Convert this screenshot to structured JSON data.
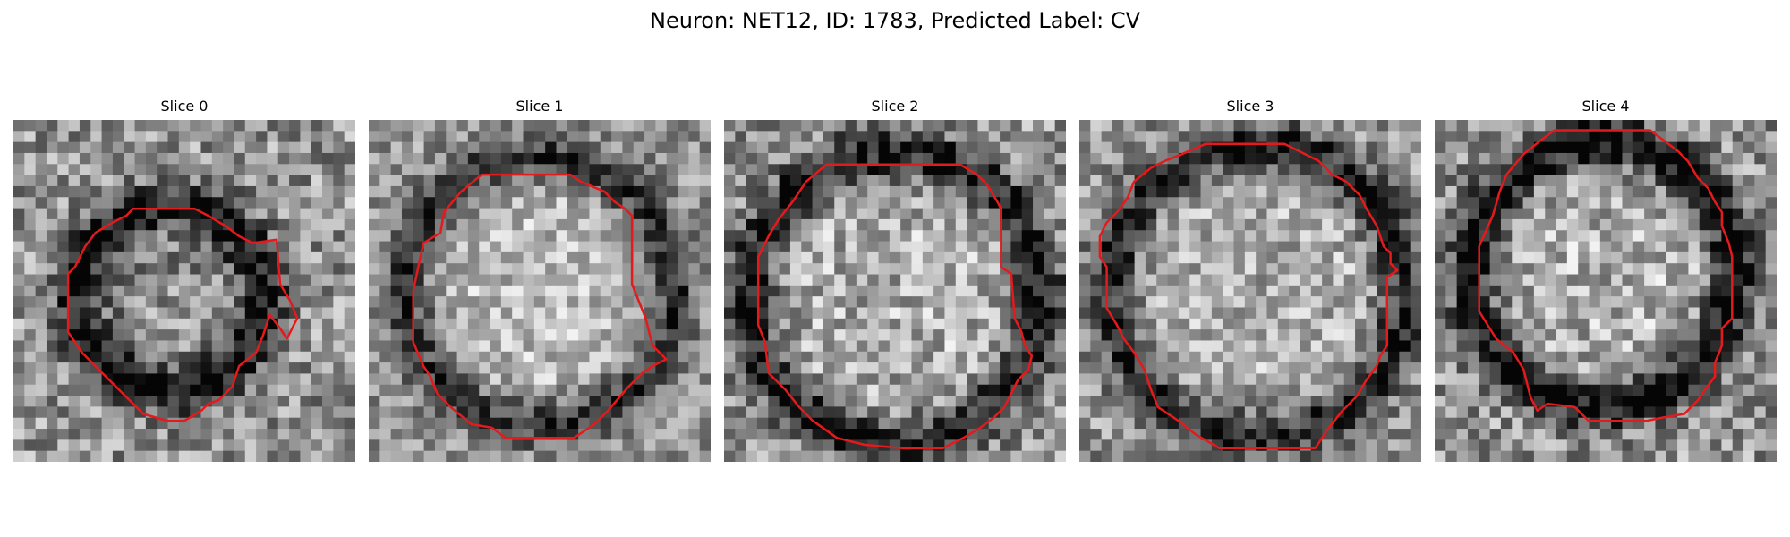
{
  "figure": {
    "title": "Neuron: NET12, ID: 1783, Predicted Label: CV",
    "contour_color": "#e41a1c"
  },
  "panels": [
    {
      "label": "Slice 0",
      "seed": 11,
      "center": [
        0.46,
        0.52
      ],
      "radius": 0.27,
      "ring_dark": 0.55,
      "inner": 0.45,
      "noise": 0.55,
      "contour": [
        [
          0.35,
          0.26
        ],
        [
          0.53,
          0.26
        ],
        [
          0.57,
          0.28
        ],
        [
          0.62,
          0.31
        ],
        [
          0.66,
          0.34
        ],
        [
          0.7,
          0.36
        ],
        [
          0.77,
          0.35
        ],
        [
          0.78,
          0.48
        ],
        [
          0.81,
          0.53
        ],
        [
          0.83,
          0.58
        ],
        [
          0.8,
          0.64
        ],
        [
          0.78,
          0.61
        ],
        [
          0.75,
          0.57
        ],
        [
          0.74,
          0.6
        ],
        [
          0.73,
          0.63
        ],
        [
          0.71,
          0.68
        ],
        [
          0.66,
          0.72
        ],
        [
          0.64,
          0.78
        ],
        [
          0.6,
          0.82
        ],
        [
          0.57,
          0.83
        ],
        [
          0.55,
          0.85
        ],
        [
          0.5,
          0.88
        ],
        [
          0.45,
          0.88
        ],
        [
          0.38,
          0.86
        ],
        [
          0.32,
          0.8
        ],
        [
          0.26,
          0.74
        ],
        [
          0.2,
          0.68
        ],
        [
          0.16,
          0.62
        ],
        [
          0.16,
          0.45
        ],
        [
          0.18,
          0.43
        ],
        [
          0.21,
          0.37
        ],
        [
          0.24,
          0.33
        ],
        [
          0.29,
          0.3
        ],
        [
          0.33,
          0.28
        ]
      ]
    },
    {
      "label": "Slice 1",
      "seed": 23,
      "center": [
        0.5,
        0.5
      ],
      "radius": 0.38,
      "ring_dark": 0.45,
      "inner": 0.8,
      "noise": 0.45,
      "contour": [
        [
          0.33,
          0.16
        ],
        [
          0.59,
          0.16
        ],
        [
          0.62,
          0.18
        ],
        [
          0.69,
          0.21
        ],
        [
          0.72,
          0.24
        ],
        [
          0.75,
          0.26
        ],
        [
          0.77,
          0.28
        ],
        [
          0.77,
          0.48
        ],
        [
          0.81,
          0.58
        ],
        [
          0.83,
          0.66
        ],
        [
          0.87,
          0.7
        ],
        [
          0.83,
          0.72
        ],
        [
          0.8,
          0.74
        ],
        [
          0.76,
          0.78
        ],
        [
          0.7,
          0.85
        ],
        [
          0.66,
          0.89
        ],
        [
          0.6,
          0.93
        ],
        [
          0.4,
          0.93
        ],
        [
          0.36,
          0.9
        ],
        [
          0.3,
          0.89
        ],
        [
          0.24,
          0.84
        ],
        [
          0.2,
          0.8
        ],
        [
          0.18,
          0.75
        ],
        [
          0.16,
          0.72
        ],
        [
          0.13,
          0.65
        ],
        [
          0.13,
          0.5
        ],
        [
          0.16,
          0.36
        ],
        [
          0.21,
          0.33
        ],
        [
          0.22,
          0.27
        ],
        [
          0.27,
          0.21
        ]
      ]
    },
    {
      "label": "Slice 2",
      "seed": 37,
      "center": [
        0.5,
        0.52
      ],
      "radius": 0.42,
      "ring_dark": 0.55,
      "inner": 0.7,
      "noise": 0.55,
      "contour": [
        [
          0.3,
          0.13
        ],
        [
          0.69,
          0.13
        ],
        [
          0.74,
          0.16
        ],
        [
          0.77,
          0.19
        ],
        [
          0.8,
          0.24
        ],
        [
          0.81,
          0.26
        ],
        [
          0.81,
          0.43
        ],
        [
          0.84,
          0.45
        ],
        [
          0.85,
          0.58
        ],
        [
          0.87,
          0.62
        ],
        [
          0.88,
          0.66
        ],
        [
          0.9,
          0.69
        ],
        [
          0.89,
          0.73
        ],
        [
          0.86,
          0.76
        ],
        [
          0.84,
          0.8
        ],
        [
          0.82,
          0.84
        ],
        [
          0.79,
          0.87
        ],
        [
          0.75,
          0.9
        ],
        [
          0.7,
          0.93
        ],
        [
          0.64,
          0.96
        ],
        [
          0.52,
          0.96
        ],
        [
          0.41,
          0.95
        ],
        [
          0.33,
          0.93
        ],
        [
          0.26,
          0.88
        ],
        [
          0.22,
          0.84
        ],
        [
          0.18,
          0.79
        ],
        [
          0.13,
          0.74
        ],
        [
          0.12,
          0.65
        ],
        [
          0.1,
          0.6
        ],
        [
          0.1,
          0.4
        ],
        [
          0.13,
          0.34
        ],
        [
          0.16,
          0.29
        ],
        [
          0.2,
          0.24
        ],
        [
          0.24,
          0.18
        ]
      ]
    },
    {
      "label": "Slice 3",
      "seed": 41,
      "center": [
        0.52,
        0.5
      ],
      "radius": 0.42,
      "ring_dark": 0.5,
      "inner": 0.7,
      "noise": 0.5,
      "contour": [
        [
          0.37,
          0.07
        ],
        [
          0.6,
          0.07
        ],
        [
          0.64,
          0.09
        ],
        [
          0.7,
          0.12
        ],
        [
          0.74,
          0.16
        ],
        [
          0.78,
          0.18
        ],
        [
          0.82,
          0.22
        ],
        [
          0.84,
          0.26
        ],
        [
          0.87,
          0.31
        ],
        [
          0.89,
          0.37
        ],
        [
          0.91,
          0.39
        ],
        [
          0.91,
          0.42
        ],
        [
          0.93,
          0.44
        ],
        [
          0.9,
          0.46
        ],
        [
          0.9,
          0.66
        ],
        [
          0.88,
          0.69
        ],
        [
          0.87,
          0.72
        ],
        [
          0.84,
          0.76
        ],
        [
          0.81,
          0.81
        ],
        [
          0.77,
          0.85
        ],
        [
          0.73,
          0.9
        ],
        [
          0.69,
          0.96
        ],
        [
          0.41,
          0.96
        ],
        [
          0.34,
          0.92
        ],
        [
          0.29,
          0.88
        ],
        [
          0.23,
          0.84
        ],
        [
          0.21,
          0.79
        ],
        [
          0.19,
          0.73
        ],
        [
          0.16,
          0.68
        ],
        [
          0.13,
          0.64
        ],
        [
          0.11,
          0.6
        ],
        [
          0.08,
          0.55
        ],
        [
          0.08,
          0.43
        ],
        [
          0.06,
          0.4
        ],
        [
          0.06,
          0.34
        ],
        [
          0.08,
          0.3
        ],
        [
          0.11,
          0.27
        ],
        [
          0.14,
          0.23
        ],
        [
          0.16,
          0.18
        ],
        [
          0.21,
          0.14
        ],
        [
          0.25,
          0.12
        ],
        [
          0.3,
          0.1
        ]
      ]
    },
    {
      "label": "Slice 4",
      "seed": 59,
      "center": [
        0.49,
        0.45
      ],
      "radius": 0.38,
      "ring_dark": 0.6,
      "inner": 0.72,
      "noise": 0.55,
      "contour": [
        [
          0.35,
          0.03
        ],
        [
          0.63,
          0.03
        ],
        [
          0.67,
          0.06
        ],
        [
          0.71,
          0.09
        ],
        [
          0.74,
          0.12
        ],
        [
          0.77,
          0.17
        ],
        [
          0.8,
          0.2
        ],
        [
          0.82,
          0.24
        ],
        [
          0.84,
          0.27
        ],
        [
          0.84,
          0.31
        ],
        [
          0.86,
          0.36
        ],
        [
          0.87,
          0.4
        ],
        [
          0.87,
          0.58
        ],
        [
          0.84,
          0.61
        ],
        [
          0.84,
          0.66
        ],
        [
          0.82,
          0.71
        ],
        [
          0.82,
          0.75
        ],
        [
          0.79,
          0.79
        ],
        [
          0.77,
          0.82
        ],
        [
          0.75,
          0.84
        ],
        [
          0.73,
          0.86
        ],
        [
          0.67,
          0.87
        ],
        [
          0.62,
          0.88
        ],
        [
          0.45,
          0.88
        ],
        [
          0.41,
          0.84
        ],
        [
          0.33,
          0.83
        ],
        [
          0.3,
          0.85
        ],
        [
          0.28,
          0.81
        ],
        [
          0.26,
          0.73
        ],
        [
          0.23,
          0.68
        ],
        [
          0.18,
          0.64
        ],
        [
          0.13,
          0.56
        ],
        [
          0.13,
          0.37
        ],
        [
          0.17,
          0.28
        ],
        [
          0.19,
          0.21
        ],
        [
          0.21,
          0.16
        ],
        [
          0.26,
          0.1
        ],
        [
          0.31,
          0.06
        ]
      ]
    }
  ]
}
